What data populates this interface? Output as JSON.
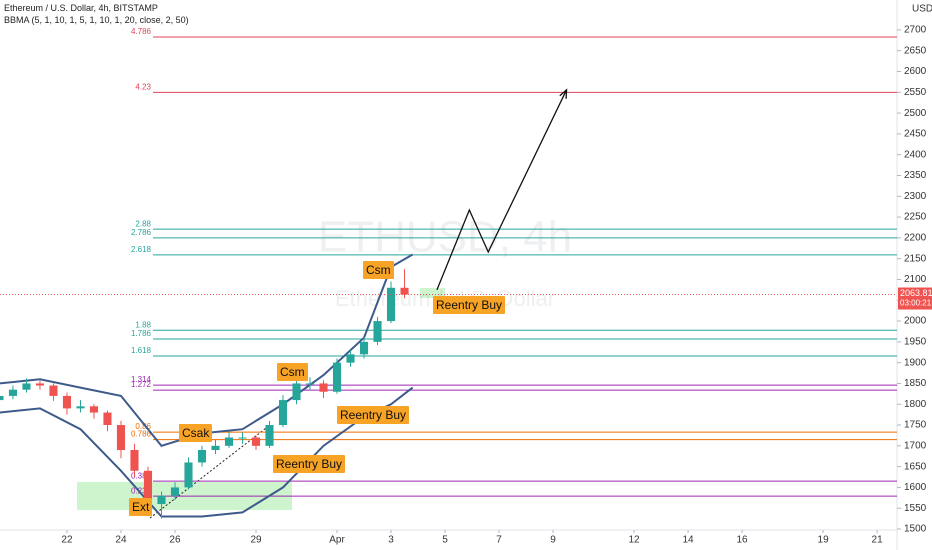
{
  "chart_data": {
    "type": "candlestick",
    "title": "Ethereum / U.S. Dollar, 4h, BITSTAMP",
    "indicator": "BBMA (5, 1, 10, 1, 5, 1, 10, 1, 20, close, 2, 50)",
    "watermark": "ETHUSD, 4h",
    "watermark_sub": "Ethereum / U.S. Dollar",
    "currency": "USD",
    "last_price": 2063.81,
    "countdown": "03:00:21",
    "ylim": [
      1500,
      2772
    ],
    "yticks": [
      1500,
      1550,
      1600,
      1650,
      1700,
      1750,
      1800,
      1850,
      1900,
      1950,
      2000,
      2050,
      2100,
      2150,
      2200,
      2250,
      2300,
      2350,
      2400,
      2450,
      2500,
      2550,
      2600,
      2650,
      2700
    ],
    "xlim": [
      -2.48,
      30.7
    ],
    "xticks": [
      {
        "value": 0,
        "label": "22"
      },
      {
        "value": 2,
        "label": "24"
      },
      {
        "value": 4,
        "label": "26"
      },
      {
        "value": 7,
        "label": "29"
      },
      {
        "value": 10,
        "label": "Apr"
      },
      {
        "value": 12,
        "label": "3"
      },
      {
        "value": 14,
        "label": "5"
      },
      {
        "value": 16,
        "label": "7"
      },
      {
        "value": 18,
        "label": "9"
      },
      {
        "value": 21,
        "label": "12"
      },
      {
        "value": 23,
        "label": "14"
      },
      {
        "value": 25,
        "label": "16"
      },
      {
        "value": 28,
        "label": "19"
      },
      {
        "value": 30,
        "label": "21"
      }
    ],
    "grid": false,
    "up_color": "#26a69a",
    "down_color": "#ef5350",
    "x": [
      -2.5,
      -2,
      -1.5,
      -1,
      -0.5,
      0,
      0.5,
      1,
      1.5,
      2,
      2.5,
      3,
      3.5,
      4,
      4.5,
      5,
      5.5,
      6,
      6.5,
      7,
      7.5,
      8,
      8.5,
      9,
      9.5,
      10,
      10.5,
      11,
      11.5,
      12,
      12.5
    ],
    "ohlc": [
      [
        1810,
        1832,
        1800,
        1820
      ],
      [
        1820,
        1845,
        1812,
        1835
      ],
      [
        1835,
        1862,
        1828,
        1850
      ],
      [
        1850,
        1858,
        1835,
        1845
      ],
      [
        1845,
        1850,
        1808,
        1820
      ],
      [
        1820,
        1828,
        1775,
        1790
      ],
      [
        1790,
        1810,
        1780,
        1795
      ],
      [
        1795,
        1800,
        1765,
        1780
      ],
      [
        1780,
        1785,
        1735,
        1750
      ],
      [
        1750,
        1760,
        1670,
        1690
      ],
      [
        1690,
        1705,
        1625,
        1640
      ],
      [
        1640,
        1650,
        1545,
        1560
      ],
      [
        1560,
        1590,
        1525,
        1580
      ],
      [
        1580,
        1612,
        1570,
        1600
      ],
      [
        1600,
        1672,
        1595,
        1660
      ],
      [
        1660,
        1700,
        1650,
        1690
      ],
      [
        1690,
        1715,
        1680,
        1700
      ],
      [
        1700,
        1735,
        1695,
        1720
      ],
      [
        1720,
        1732,
        1705,
        1720
      ],
      [
        1720,
        1725,
        1690,
        1700
      ],
      [
        1700,
        1760,
        1695,
        1750
      ],
      [
        1750,
        1822,
        1745,
        1810
      ],
      [
        1810,
        1862,
        1800,
        1850
      ],
      [
        1850,
        1865,
        1835,
        1850
      ],
      [
        1850,
        1858,
        1815,
        1830
      ],
      [
        1830,
        1910,
        1825,
        1900
      ],
      [
        1900,
        1930,
        1890,
        1920
      ],
      [
        1920,
        1962,
        1910,
        1950
      ],
      [
        1950,
        2010,
        1942,
        2000
      ],
      [
        2000,
        2095,
        1995,
        2080
      ],
      [
        2080,
        2125,
        2055,
        2063.81
      ]
    ],
    "band_color": "#3d5a8a",
    "band_x": [
      -2.5,
      -1,
      0.5,
      2,
      3.5,
      5,
      6.5,
      8,
      9.5,
      11,
      12,
      12.8
    ],
    "band_upper": [
      1850,
      1860,
      1840,
      1820,
      1700,
      1730,
      1740,
      1800,
      1870,
      1960,
      2130,
      2160
    ],
    "band_lower": [
      1780,
      1790,
      1740,
      1640,
      1530,
      1530,
      1540,
      1600,
      1700,
      1770,
      1800,
      1840
    ],
    "levels": [
      {
        "label": "4.786",
        "value": 2683,
        "color": "#e0435a"
      },
      {
        "label": "4.23",
        "value": 2550,
        "color": "#e0435a"
      },
      {
        "label": "2.88",
        "value": 2221,
        "color": "#26a69a"
      },
      {
        "label": "2.786",
        "value": 2200,
        "color": "#26a69a"
      },
      {
        "label": "2.618",
        "value": 2159,
        "color": "#26a69a"
      },
      {
        "label": "1.88",
        "value": 1978,
        "color": "#26a69a"
      },
      {
        "label": "1.786",
        "value": 1957,
        "color": "#26a69a"
      },
      {
        "label": "1.618",
        "value": 1916,
        "color": "#26a69a"
      },
      {
        "label": "1.314",
        "value": 1846,
        "color": "#9c27b0"
      },
      {
        "label": "1.272",
        "value": 1834,
        "color": "#9c27b0"
      },
      {
        "label": "0.86",
        "value": 1733,
        "color": "#ef6c00"
      },
      {
        "label": "0.786",
        "value": 1715,
        "color": "#ef6c00"
      },
      {
        "label": "0.382",
        "value": 1615,
        "color": "#9c27b0"
      },
      {
        "label": "0.236",
        "value": 1579,
        "color": "#9c27b0"
      }
    ],
    "projection": {
      "x": [
        13.7,
        14.9,
        15.6,
        18.5
      ],
      "y": [
        2075,
        2267,
        2166,
        2556
      ]
    },
    "annotations": [
      "Csm",
      "Reentry Buy",
      "Csm",
      "Reentry Buy",
      "Csak",
      "Reentry Buy",
      "Ext"
    ]
  }
}
